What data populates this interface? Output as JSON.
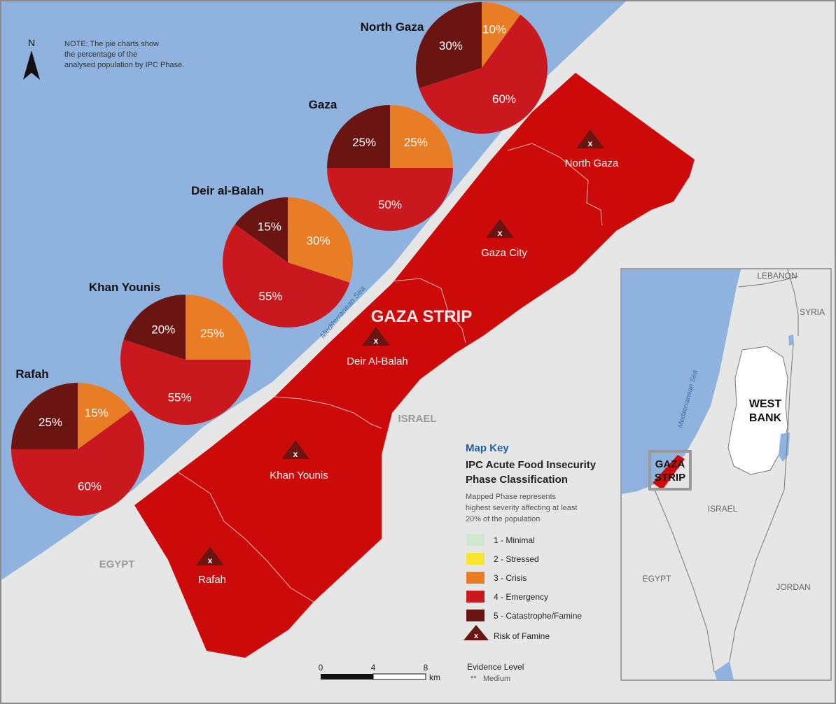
{
  "note": "NOTE: The pie charts show the percentage of the analysed population by IPC Phase.",
  "north_label": "N",
  "colors": {
    "sea": "#8fb3de",
    "land": "#e6e6e6",
    "strip": "#cc0a0a",
    "phase1": "#cfe9cf",
    "phase2": "#f7e531",
    "phase3": "#e97d26",
    "phase4": "#c9191e",
    "phase5": "#6b1512"
  },
  "labels": {
    "strip": "GAZA STRIP",
    "sea": "Mediterranean Sea",
    "israel": "ISRAEL",
    "egypt": "EGYPT"
  },
  "municipalities": [
    {
      "name": "North Gaza",
      "marker": "x"
    },
    {
      "name": "Gaza City",
      "marker": "x"
    },
    {
      "name": "Deir Al-Balah",
      "marker": "x"
    },
    {
      "name": "Khan Younis",
      "marker": "x"
    },
    {
      "name": "Rafah",
      "marker": "x"
    }
  ],
  "chart_data": {
    "type": "pie",
    "charts": [
      {
        "title": "North Gaza",
        "slices": [
          {
            "phase": 3,
            "value": 10,
            "label": "10%"
          },
          {
            "phase": 4,
            "value": 60,
            "label": "60%"
          },
          {
            "phase": 5,
            "value": 30,
            "label": "30%"
          }
        ]
      },
      {
        "title": "Gaza",
        "slices": [
          {
            "phase": 3,
            "value": 25,
            "label": "25%"
          },
          {
            "phase": 4,
            "value": 50,
            "label": "50%"
          },
          {
            "phase": 5,
            "value": 25,
            "label": "25%"
          }
        ]
      },
      {
        "title": "Deir al-Balah",
        "slices": [
          {
            "phase": 3,
            "value": 30,
            "label": "30%"
          },
          {
            "phase": 4,
            "value": 55,
            "label": "55%"
          },
          {
            "phase": 5,
            "value": 15,
            "label": "15%"
          }
        ]
      },
      {
        "title": "Khan Younis",
        "slices": [
          {
            "phase": 3,
            "value": 25,
            "label": "25%"
          },
          {
            "phase": 4,
            "value": 55,
            "label": "55%"
          },
          {
            "phase": 5,
            "value": 20,
            "label": "20%"
          }
        ]
      },
      {
        "title": "Rafah",
        "slices": [
          {
            "phase": 3,
            "value": 15,
            "label": "15%"
          },
          {
            "phase": 4,
            "value": 60,
            "label": "60%"
          },
          {
            "phase": 5,
            "value": 25,
            "label": "25%"
          }
        ]
      }
    ]
  },
  "key": {
    "heading": "Map Key",
    "title_line1": "IPC Acute Food Insecurity",
    "title_line2": "Phase Classification",
    "sub_line1": "Mapped Phase represents",
    "sub_line2": "highest severity affecting at least",
    "sub_line3": "20% of the population",
    "items": [
      {
        "label": "1 - Minimal",
        "color": "#cfe9cf"
      },
      {
        "label": "2 - Stressed",
        "color": "#f7e531"
      },
      {
        "label": "3 - Crisis",
        "color": "#e97d26"
      },
      {
        "label": "4 - Emergency",
        "color": "#c9191e"
      },
      {
        "label": "5 - Catastrophe/Famine",
        "color": "#6b1512"
      }
    ],
    "famine_marker": "x",
    "famine_label": "Risk of Famine"
  },
  "scale": {
    "t0": "0",
    "t1": "4",
    "t2": "8",
    "unit": "km"
  },
  "evidence": {
    "title": "Evidence Level",
    "stars": "**",
    "level": "Medium"
  },
  "inset": {
    "lebanon": "LEBANON",
    "syria": "SYRIA",
    "west_line1": "WEST",
    "west_line2": "BANK",
    "gaza_line1": "GAZA",
    "gaza_line2": "STRIP",
    "israel": "ISRAEL",
    "egypt": "EGYPT",
    "jordan": "JORDAN",
    "sea": "Mediterranean Sea"
  }
}
